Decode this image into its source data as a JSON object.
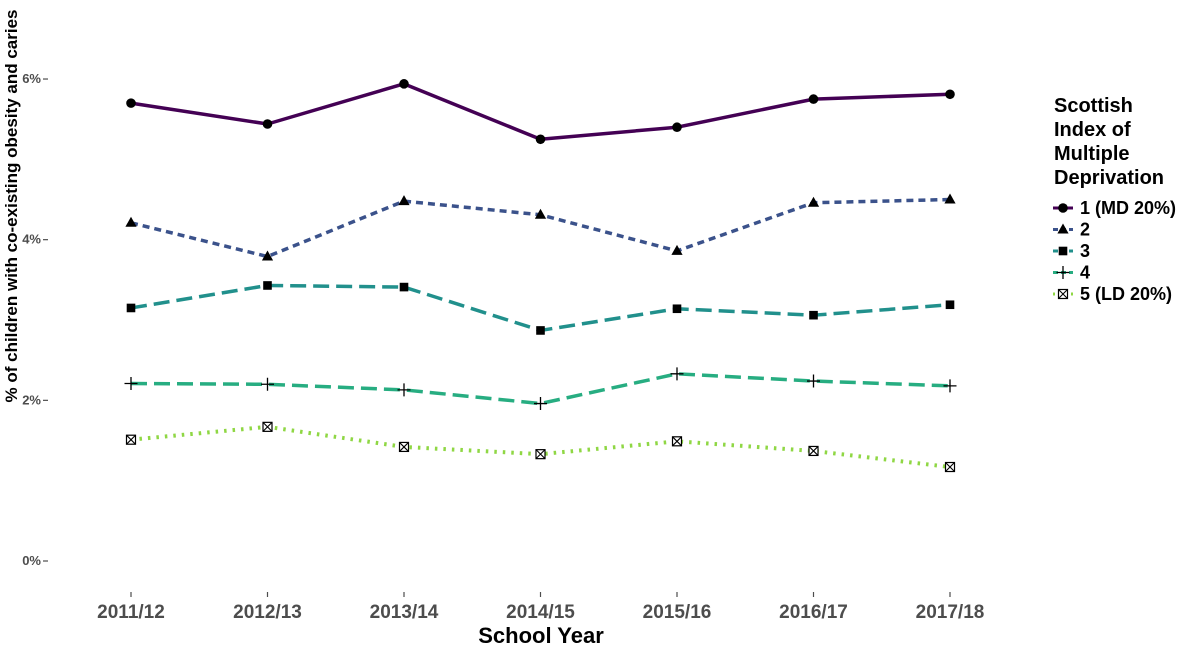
{
  "chart_data": {
    "type": "line",
    "xlabel": "School Year",
    "ylabel": "% of children with co-existing obesity and caries",
    "categories": [
      "2011/12",
      "2012/13",
      "2013/14",
      "2014/15",
      "2015/16",
      "2016/17",
      "2017/18"
    ],
    "ylim": [
      0,
      6.6
    ],
    "yticks": [
      0,
      2,
      4,
      6
    ],
    "ytick_labels": [
      "0%",
      "2%",
      "4%",
      "6%"
    ],
    "grid": false,
    "legend_title": "Scottish Index of Multiple Deprivation",
    "legend_title_lines": [
      "Scottish",
      "Index of",
      "Multiple",
      "Deprivation"
    ],
    "legend_position": "right",
    "series": [
      {
        "name": "1 (MD 20%)",
        "values": [
          5.7,
          5.44,
          5.94,
          5.25,
          5.4,
          5.75,
          5.81
        ],
        "color": "#440154",
        "marker": "circle",
        "dash": "solid"
      },
      {
        "name": "2",
        "values": [
          4.21,
          3.79,
          4.48,
          4.31,
          3.86,
          4.46,
          4.5
        ],
        "color": "#3b528b",
        "marker": "triangle",
        "dash": "short-dash"
      },
      {
        "name": "3",
        "values": [
          3.15,
          3.43,
          3.41,
          2.87,
          3.14,
          3.06,
          3.19
        ],
        "color": "#21908c",
        "marker": "square",
        "dash": "long-dash"
      },
      {
        "name": "4",
        "values": [
          2.21,
          2.2,
          2.13,
          1.96,
          2.33,
          2.24,
          2.18
        ],
        "color": "#27ad81",
        "marker": "plus",
        "dash": "long-dash"
      },
      {
        "name": "5 (LD 20%)",
        "values": [
          1.51,
          1.67,
          1.42,
          1.33,
          1.49,
          1.37,
          1.17
        ],
        "color": "#8fd744",
        "marker": "boxed-x",
        "dash": "dotted"
      }
    ]
  }
}
